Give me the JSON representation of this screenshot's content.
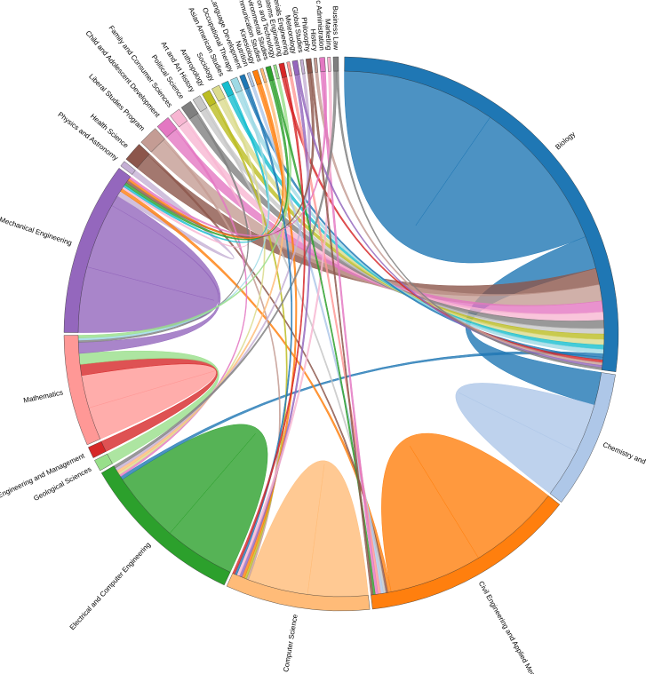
{
  "chart_data": {
    "type": "chord",
    "groups": [
      {
        "name": "Biology",
        "color": "#1f77b4"
      },
      {
        "name": "Chemistry and Biochemistry",
        "color": "#aec7e8"
      },
      {
        "name": "Civil Engineering and Applied Mechanics",
        "color": "#ff7f0e"
      },
      {
        "name": "Computer Science",
        "color": "#ffbb78"
      },
      {
        "name": "Electrical and Computer Engineering",
        "color": "#2ca02c"
      },
      {
        "name": "Geological Sciences",
        "color": "#98df8a"
      },
      {
        "name": "Engineering and Management",
        "color": "#d62728"
      },
      {
        "name": "Mathematics",
        "color": "#ff9896"
      },
      {
        "name": "Mechanical Engineering",
        "color": "#9467bd"
      },
      {
        "name": "Physics and Astronomy",
        "color": "#c5b0d5"
      },
      {
        "name": "Health Science",
        "color": "#8c564b"
      },
      {
        "name": "Liberal Studies Program",
        "color": "#c49c94"
      },
      {
        "name": "Child and Adolescent Development",
        "color": "#e377c2"
      },
      {
        "name": "Family and Consumer Sciences",
        "color": "#f7b6d2"
      },
      {
        "name": "Political Science",
        "color": "#7f7f7f"
      },
      {
        "name": "Art and Art History",
        "color": "#c7c7c7"
      },
      {
        "name": "Anthropology",
        "color": "#bcbd22"
      },
      {
        "name": "Sociology",
        "color": "#dbdb8d"
      },
      {
        "name": "Asian American Studies",
        "color": "#17becf"
      },
      {
        "name": "Occupational Therapy",
        "color": "#9edae5"
      },
      {
        "name": "Linguistics and Language Development",
        "color": "#1f77b4"
      },
      {
        "name": "Nutrition",
        "color": "#aec7e8"
      },
      {
        "name": "Kinesiology",
        "color": "#ff7f0e"
      },
      {
        "name": "Communication Studies",
        "color": "#ffbb78"
      },
      {
        "name": "Environmental Studies",
        "color": "#2ca02c"
      },
      {
        "name": "Aviation and Technology",
        "color": "#98df8a"
      },
      {
        "name": "Industrial and Systems Engineering",
        "color": "#d62728"
      },
      {
        "name": "Chemical and Materials Engineering",
        "color": "#ff9896"
      },
      {
        "name": "Meteorology",
        "color": "#9467bd"
      },
      {
        "name": "Global Studies",
        "color": "#c5b0d5"
      },
      {
        "name": "Philosophy",
        "color": "#8c564b"
      },
      {
        "name": "History",
        "color": "#c49c94"
      },
      {
        "name": "Public Administration",
        "color": "#e377c2"
      },
      {
        "name": "Marketing",
        "color": "#f7b6d2"
      },
      {
        "name": "Business Law",
        "color": "#7f7f7f"
      }
    ],
    "chords": [
      {
        "source": 0,
        "target": 0,
        "value": 28
      },
      {
        "source": 0,
        "target": 1,
        "value": 6
      },
      {
        "source": 10,
        "target": 0,
        "value": 3
      },
      {
        "source": 11,
        "target": 0,
        "value": 3
      },
      {
        "source": 12,
        "target": 0,
        "value": 2
      },
      {
        "source": 13,
        "target": 0,
        "value": 1.5
      },
      {
        "source": 14,
        "target": 0,
        "value": 1.5
      },
      {
        "source": 15,
        "target": 0,
        "value": 1
      },
      {
        "source": 16,
        "target": 0,
        "value": 1
      },
      {
        "source": 17,
        "target": 0,
        "value": 1
      },
      {
        "source": 18,
        "target": 0,
        "value": 0.8
      },
      {
        "source": 19,
        "target": 0,
        "value": 0.8
      },
      {
        "source": 1,
        "target": 1,
        "value": 9
      },
      {
        "source": 2,
        "target": 2,
        "value": 17
      },
      {
        "source": 3,
        "target": 3,
        "value": 11
      },
      {
        "source": 4,
        "target": 4,
        "value": 13
      },
      {
        "source": 7,
        "target": 7,
        "value": 6
      },
      {
        "source": 8,
        "target": 8,
        "value": 12
      },
      {
        "source": 6,
        "target": 7,
        "value": 2
      },
      {
        "source": 5,
        "target": 7,
        "value": 2
      },
      {
        "source": 8,
        "target": 7,
        "value": 2
      },
      {
        "source": 9,
        "target": 8,
        "value": 1
      },
      {
        "source": 0,
        "target": 4,
        "value": 0.6
      },
      {
        "source": 2,
        "target": 8,
        "value": 0.6
      },
      {
        "source": 10,
        "target": 2,
        "value": 0.4
      },
      {
        "source": 11,
        "target": 3,
        "value": 0.4
      },
      {
        "source": 12,
        "target": 4,
        "value": 0.4
      },
      {
        "source": 13,
        "target": 8,
        "value": 0.4
      },
      {
        "source": 14,
        "target": 7,
        "value": 0.4
      },
      {
        "source": 15,
        "target": 2,
        "value": 0.4
      },
      {
        "source": 16,
        "target": 3,
        "value": 0.4
      },
      {
        "source": 17,
        "target": 4,
        "value": 0.4
      },
      {
        "source": 18,
        "target": 8,
        "value": 0.4
      },
      {
        "source": 19,
        "target": 7,
        "value": 0.4
      },
      {
        "source": 20,
        "target": 0,
        "value": 0.5
      },
      {
        "source": 21,
        "target": 2,
        "value": 0.5
      },
      {
        "source": 22,
        "target": 3,
        "value": 0.5
      },
      {
        "source": 23,
        "target": 4,
        "value": 0.5
      },
      {
        "source": 24,
        "target": 8,
        "value": 0.5
      },
      {
        "source": 25,
        "target": 7,
        "value": 0.5
      },
      {
        "source": 26,
        "target": 0,
        "value": 0.5
      },
      {
        "source": 27,
        "target": 2,
        "value": 0.5
      },
      {
        "source": 28,
        "target": 3,
        "value": 0.5
      },
      {
        "source": 29,
        "target": 4,
        "value": 0.5
      },
      {
        "source": 30,
        "target": 8,
        "value": 0.5
      },
      {
        "source": 31,
        "target": 0,
        "value": 0.5
      },
      {
        "source": 32,
        "target": 2,
        "value": 0.5
      },
      {
        "source": 33,
        "target": 3,
        "value": 0.5
      },
      {
        "source": 34,
        "target": 4,
        "value": 0.5
      },
      {
        "source": 20,
        "target": 3,
        "value": 0.4
      },
      {
        "source": 22,
        "target": 8,
        "value": 0.4
      },
      {
        "source": 24,
        "target": 2,
        "value": 0.4
      },
      {
        "source": 26,
        "target": 3,
        "value": 0.4
      },
      {
        "source": 28,
        "target": 0,
        "value": 0.4
      },
      {
        "source": 30,
        "target": 2,
        "value": 0.4
      },
      {
        "source": 32,
        "target": 8,
        "value": 0.4
      },
      {
        "source": 34,
        "target": 0,
        "value": 0.4
      }
    ]
  }
}
